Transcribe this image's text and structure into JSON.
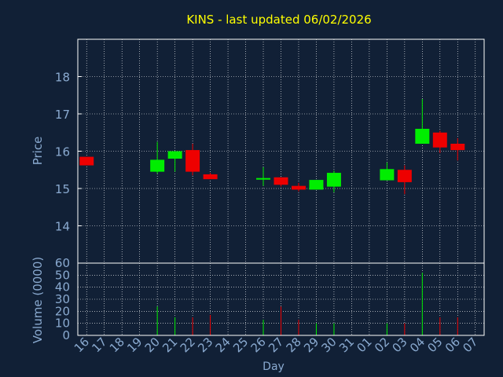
{
  "title": "KINS - last updated 06/02/2026",
  "colors": {
    "background": "#112036",
    "title": "#ffff00",
    "axis_text": "#8aaad0",
    "frame": "#ffffff",
    "grid": "#ffffff",
    "up": "#00ee00",
    "down": "#ee0000"
  },
  "chart_data": [
    {
      "type": "candlestick",
      "ylabel": "Price",
      "ylim": [
        13.0,
        19.0
      ],
      "yticks": [
        14,
        15,
        16,
        17,
        18
      ],
      "grid": true,
      "candles": [
        {
          "x": "16",
          "open": 15.85,
          "high": 15.85,
          "low": 15.62,
          "close": 15.62
        },
        {
          "x": "20",
          "open": 15.45,
          "high": 16.25,
          "low": 15.4,
          "close": 15.77
        },
        {
          "x": "21",
          "open": 15.8,
          "high": 16.0,
          "low": 15.45,
          "close": 16.0
        },
        {
          "x": "22",
          "open": 16.03,
          "high": 16.2,
          "low": 15.35,
          "close": 15.45
        },
        {
          "x": "23",
          "open": 15.38,
          "high": 15.42,
          "low": 15.25,
          "close": 15.25
        },
        {
          "x": "26",
          "open": 15.26,
          "high": 15.57,
          "low": 15.07,
          "close": 15.28
        },
        {
          "x": "27",
          "open": 15.3,
          "high": 15.3,
          "low": 15.05,
          "close": 15.1
        },
        {
          "x": "28",
          "open": 15.07,
          "high": 15.15,
          "low": 14.92,
          "close": 14.97
        },
        {
          "x": "29",
          "open": 14.97,
          "high": 15.23,
          "low": 14.97,
          "close": 15.23
        },
        {
          "x": "30",
          "open": 15.05,
          "high": 15.48,
          "low": 14.9,
          "close": 15.42
        },
        {
          "x": "02",
          "open": 15.22,
          "high": 15.7,
          "low": 15.22,
          "close": 15.52
        },
        {
          "x": "03",
          "open": 15.5,
          "high": 15.62,
          "low": 14.85,
          "close": 15.17
        },
        {
          "x": "04",
          "open": 16.2,
          "high": 17.4,
          "low": 16.2,
          "close": 16.6
        },
        {
          "x": "05",
          "open": 16.5,
          "high": 16.55,
          "low": 15.95,
          "close": 16.1
        },
        {
          "x": "06",
          "open": 16.2,
          "high": 16.35,
          "low": 15.75,
          "close": 16.03
        }
      ]
    },
    {
      "type": "bar",
      "ylabel": "Volume (0000)",
      "xlabel": "Day",
      "ylim": [
        0,
        60
      ],
      "yticks": [
        0,
        10,
        20,
        30,
        40,
        50,
        60
      ],
      "grid": true,
      "categories": [
        "16",
        "17",
        "18",
        "19",
        "20",
        "21",
        "22",
        "23",
        "24",
        "25",
        "26",
        "27",
        "28",
        "29",
        "30",
        "31",
        "01",
        "02",
        "03",
        "04",
        "05",
        "06",
        "07"
      ],
      "volumes": [
        {
          "x": "20",
          "value": 24,
          "direction": "up"
        },
        {
          "x": "21",
          "value": 15,
          "direction": "up"
        },
        {
          "x": "22",
          "value": 15,
          "direction": "down"
        },
        {
          "x": "23",
          "value": 17,
          "direction": "down"
        },
        {
          "x": "26",
          "value": 13,
          "direction": "up"
        },
        {
          "x": "27",
          "value": 24,
          "direction": "down"
        },
        {
          "x": "28",
          "value": 13,
          "direction": "down"
        },
        {
          "x": "29",
          "value": 10,
          "direction": "up"
        },
        {
          "x": "30",
          "value": 10,
          "direction": "up"
        },
        {
          "x": "02",
          "value": 10,
          "direction": "up"
        },
        {
          "x": "03",
          "value": 10,
          "direction": "down"
        },
        {
          "x": "04",
          "value": 52,
          "direction": "up"
        },
        {
          "x": "05",
          "value": 15,
          "direction": "down"
        },
        {
          "x": "06",
          "value": 15,
          "direction": "down"
        }
      ]
    }
  ]
}
